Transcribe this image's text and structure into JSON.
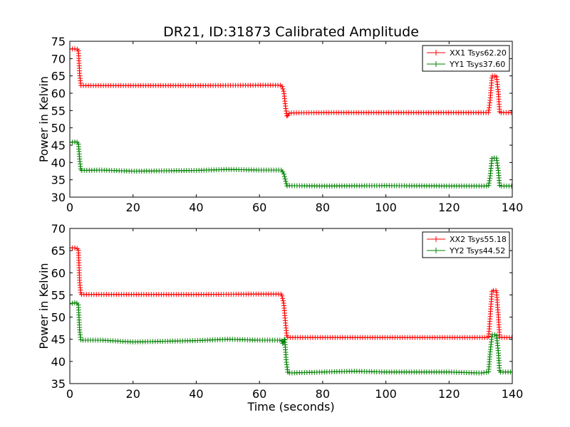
{
  "chart_data": [
    {
      "type": "line",
      "title": "DR21, ID:31873 Calibrated Amplitude",
      "xlabel": "",
      "ylabel": "Power in Kelvin",
      "xlim": [
        0,
        140
      ],
      "ylim": [
        30,
        75
      ],
      "x_ticks": [
        "0",
        "20",
        "40",
        "60",
        "80",
        "100",
        "120",
        "140"
      ],
      "y_ticks": [
        "30",
        "35",
        "40",
        "45",
        "50",
        "55",
        "60",
        "65",
        "70",
        "75"
      ],
      "legend": "top-right",
      "grid": false,
      "series": [
        {
          "name": "XX1 Tsys62.20",
          "color": "#ff0000",
          "marker": "+",
          "points": [
            [
              0,
              72.8
            ],
            [
              2,
              72.8
            ],
            [
              2.7,
              72.6
            ],
            [
              3.1,
              65.5
            ],
            [
              3.5,
              62.2
            ],
            [
              20,
              62.2
            ],
            [
              40,
              62.2
            ],
            [
              60,
              62.3
            ],
            [
              67,
              62.3
            ],
            [
              67.7,
              60.5
            ],
            [
              68.2,
              56.5
            ],
            [
              68.7,
              53.2
            ],
            [
              69.5,
              54.3
            ],
            [
              80,
              54.4
            ],
            [
              100,
              54.4
            ],
            [
              120,
              54.4
            ],
            [
              132.5,
              54.4
            ],
            [
              133,
              58
            ],
            [
              133.6,
              65
            ],
            [
              135,
              65
            ],
            [
              135.6,
              60
            ],
            [
              136,
              54.4
            ],
            [
              140,
              54.4
            ]
          ]
        },
        {
          "name": "YY1 Tsys37.60",
          "color": "#008000",
          "marker": "+",
          "points": [
            [
              0,
              45.8
            ],
            [
              2,
              46
            ],
            [
              2.7,
              45.6
            ],
            [
              3.1,
              41
            ],
            [
              3.5,
              37.7
            ],
            [
              10,
              37.8
            ],
            [
              20,
              37.5
            ],
            [
              40,
              37.7
            ],
            [
              50,
              38
            ],
            [
              60,
              37.8
            ],
            [
              67,
              37.8
            ],
            [
              67.7,
              36.8
            ],
            [
              68.2,
              35
            ],
            [
              68.7,
              33.2
            ],
            [
              69.5,
              33.3
            ],
            [
              80,
              33.2
            ],
            [
              100,
              33.3
            ],
            [
              120,
              33.2
            ],
            [
              132.5,
              33.2
            ],
            [
              133,
              36
            ],
            [
              133.6,
              41.3
            ],
            [
              135,
              41.3
            ],
            [
              135.6,
              37.5
            ],
            [
              136,
              33.2
            ],
            [
              140,
              33.2
            ]
          ]
        }
      ]
    },
    {
      "type": "line",
      "title": "",
      "xlabel": "Time (seconds)",
      "ylabel": "Power in Kelvin",
      "xlim": [
        0,
        140
      ],
      "ylim": [
        35,
        70
      ],
      "x_ticks": [
        "0",
        "20",
        "40",
        "60",
        "80",
        "100",
        "120",
        "140"
      ],
      "y_ticks": [
        "35",
        "40",
        "45",
        "50",
        "55",
        "60",
        "65",
        "70"
      ],
      "legend": "top-right",
      "grid": false,
      "series": [
        {
          "name": "XX2 Tsys55.18",
          "color": "#ff0000",
          "marker": "+",
          "points": [
            [
              0,
              65.6
            ],
            [
              2,
              65.6
            ],
            [
              2.7,
              65.3
            ],
            [
              3.1,
              58
            ],
            [
              3.5,
              55.1
            ],
            [
              20,
              55.1
            ],
            [
              40,
              55.1
            ],
            [
              60,
              55.2
            ],
            [
              67,
              55.2
            ],
            [
              67.7,
              53
            ],
            [
              68.2,
              49
            ],
            [
              68.7,
              45.5
            ],
            [
              69.5,
              45.4
            ],
            [
              80,
              45.4
            ],
            [
              100,
              45.4
            ],
            [
              120,
              45.4
            ],
            [
              132.5,
              45.4
            ],
            [
              133,
              50
            ],
            [
              133.6,
              56
            ],
            [
              135,
              56
            ],
            [
              135.6,
              50
            ],
            [
              136,
              45.4
            ],
            [
              140,
              45.4
            ]
          ]
        },
        {
          "name": "YY2 Tsys44.52",
          "color": "#008000",
          "marker": "+",
          "points": [
            [
              0,
              53
            ],
            [
              2,
              53.3
            ],
            [
              2.7,
              52.8
            ],
            [
              3.1,
              47
            ],
            [
              3.5,
              44.8
            ],
            [
              10,
              44.8
            ],
            [
              20,
              44.4
            ],
            [
              40,
              44.7
            ],
            [
              50,
              45
            ],
            [
              60,
              44.8
            ],
            [
              67,
              44.8
            ],
            [
              67.4,
              44
            ],
            [
              68,
              45.2
            ],
            [
              68.5,
              40
            ],
            [
              69,
              37.4
            ],
            [
              80,
              37.6
            ],
            [
              90,
              37.8
            ],
            [
              100,
              37.6
            ],
            [
              120,
              37.6
            ],
            [
              130,
              37.4
            ],
            [
              132.5,
              37.6
            ],
            [
              133,
              42
            ],
            [
              133.6,
              46
            ],
            [
              135,
              46
            ],
            [
              135.6,
              42
            ],
            [
              136,
              37.6
            ],
            [
              140,
              37.6
            ]
          ]
        }
      ]
    }
  ]
}
